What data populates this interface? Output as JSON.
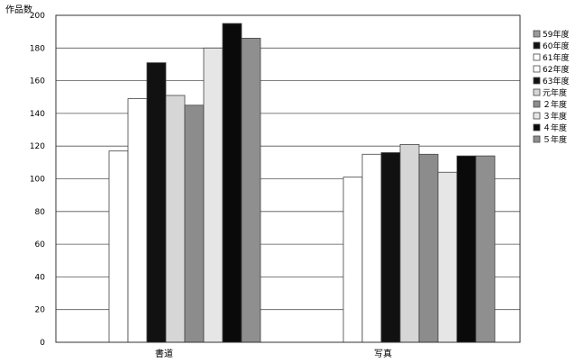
{
  "chart_data": {
    "type": "bar",
    "ylabel": "作品数",
    "xlabel": "",
    "ylim": [
      0,
      200
    ],
    "yticks": [
      0,
      20,
      40,
      60,
      80,
      100,
      120,
      140,
      160,
      180,
      200
    ],
    "grid": true,
    "legend_position": "right",
    "categories": [
      "書道",
      "写真"
    ],
    "series": [
      {
        "name": "59年度",
        "color": "#9a9a9a",
        "values": [
          null,
          null
        ]
      },
      {
        "name": "60年度",
        "color": "#111111",
        "values": [
          null,
          null
        ]
      },
      {
        "name": "61年度",
        "color": "#ffffff",
        "values": [
          117,
          101
        ]
      },
      {
        "name": "62年度",
        "color": "#ffffff",
        "values": [
          149,
          115
        ]
      },
      {
        "name": "63年度",
        "color": "#111111",
        "values": [
          171,
          116
        ]
      },
      {
        "name": "元年度",
        "color": "#d6d6d6",
        "values": [
          151,
          121
        ]
      },
      {
        "name": "２年度",
        "color": "#8c8c8c",
        "values": [
          145,
          115
        ]
      },
      {
        "name": "３年度",
        "color": "#e6e6e6",
        "values": [
          180,
          104
        ]
      },
      {
        "name": "４年度",
        "color": "#0a0a0a",
        "values": [
          195,
          114
        ]
      },
      {
        "name": "５年度",
        "color": "#8f8f8f",
        "values": [
          186,
          114
        ]
      }
    ]
  }
}
